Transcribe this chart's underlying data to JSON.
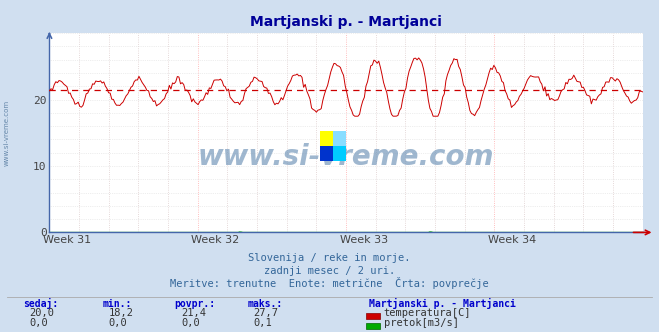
{
  "title": "Martjanski p. - Martjanci",
  "title_color": "#000099",
  "bg_color": "#d0dff0",
  "plot_bg_color": "#ffffff",
  "grid_color": "#c8c8c8",
  "xticklabels": [
    "Week 31",
    "Week 32",
    "Week 33",
    "Week 34"
  ],
  "yticks": [
    0,
    10,
    20
  ],
  "ymax": 30,
  "ymin": 0,
  "temp_color": "#cc0000",
  "flow_color": "#00aa00",
  "avg_color": "#cc0000",
  "avg_value": 21.4,
  "temp_base": 21.0,
  "temp_amp1": 2.5,
  "temp_amp2": 1.5,
  "subtitle1": "Slovenija / reke in morje.",
  "subtitle2": "zadnji mesec / 2 uri.",
  "subtitle3": "Meritve: trenutne  Enote: metrične  Črta: povprečje",
  "legend_title": "Martjanski p. - Martjanci",
  "legend_label1": "temperatura[C]",
  "legend_label2": "pretok[m3/s]",
  "stat_headers": [
    "sedaj:",
    "min.:",
    "povpr.:",
    "maks.:"
  ],
  "stat_temp": [
    "20,0",
    "18,2",
    "21,4",
    "27,7"
  ],
  "stat_flow": [
    "0,0",
    "0,0",
    "0,0",
    "0,1"
  ],
  "watermark": "www.si-vreme.com",
  "num_points": 372,
  "left_label": "www.si-vreme.com",
  "spine_color": "#4466aa",
  "tick_color": "#444444",
  "subtitle_color": "#336699",
  "stat_header_color": "#0000cc",
  "stat_val_color": "#333333"
}
